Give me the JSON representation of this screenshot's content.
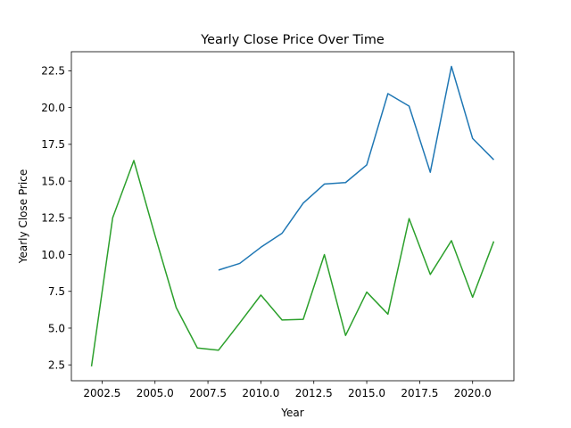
{
  "chart_data": {
    "type": "line",
    "title": "Yearly Close Price Over Time",
    "xlabel": "Year",
    "ylabel": "Yearly Close Price",
    "xlim": [
      2001.05,
      2021.95
    ],
    "ylim": [
      1.42,
      23.8
    ],
    "grid": false,
    "legend": "none",
    "xticks": [
      "2002.5",
      "2005.0",
      "2007.5",
      "2010.0",
      "2012.5",
      "2015.0",
      "2017.5",
      "2020.0"
    ],
    "yticks": [
      "2.5",
      "5.0",
      "7.5",
      "10.0",
      "12.5",
      "15.0",
      "17.5",
      "20.0",
      "22.5"
    ],
    "series": [
      {
        "color": "#1f77b4",
        "x": [
          2008,
          2009,
          2010,
          2011,
          2012,
          2013,
          2014,
          2015,
          2016,
          2017,
          2018,
          2019,
          2020,
          2021
        ],
        "y": [
          8.95,
          9.4,
          10.5,
          11.45,
          13.5,
          14.8,
          14.9,
          16.1,
          20.95,
          20.1,
          15.6,
          22.8,
          17.9,
          16.45
        ]
      },
      {
        "color": "#2ca02c",
        "x": [
          2002,
          2003,
          2004,
          2005,
          2006,
          2007,
          2008,
          2009,
          2010,
          2011,
          2012,
          2013,
          2014,
          2015,
          2016,
          2017,
          2018,
          2019,
          2020,
          2021
        ],
        "y": [
          2.4,
          12.5,
          16.4,
          11.3,
          6.4,
          3.65,
          3.5,
          5.35,
          7.25,
          5.55,
          5.6,
          10.0,
          4.5,
          7.45,
          5.95,
          12.45,
          8.65,
          10.95,
          7.1,
          10.9
        ]
      }
    ]
  }
}
